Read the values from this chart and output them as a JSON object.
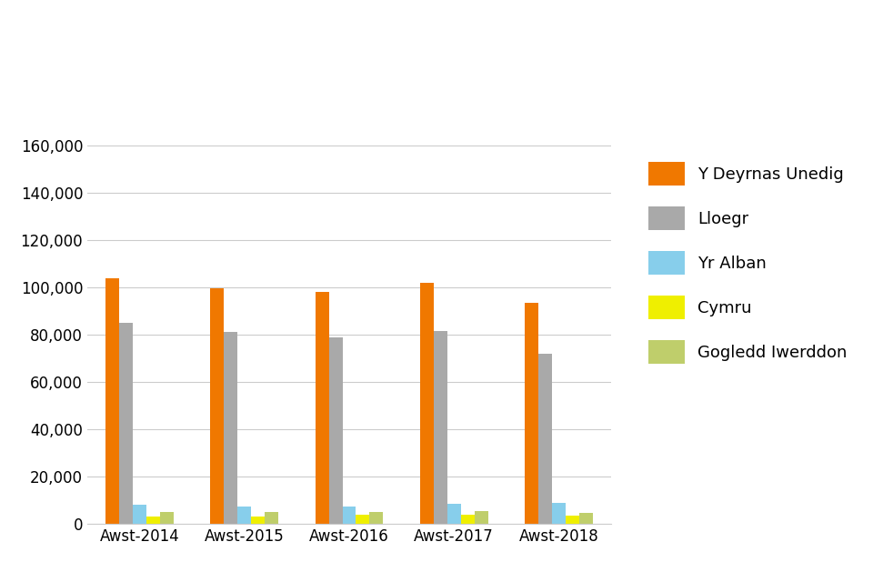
{
  "categories": [
    "Awst-2014",
    "Awst-2015",
    "Awst-2016",
    "Awst-2017",
    "Awst-2018"
  ],
  "series": {
    "Y Deyrnas Unedig": [
      104000,
      99500,
      98000,
      102000,
      93500
    ],
    "Lloegr": [
      85000,
      81000,
      79000,
      81500,
      72000
    ],
    "Yr Alban": [
      8000,
      7500,
      7500,
      8500,
      9000
    ],
    "Cymru": [
      3000,
      3000,
      4000,
      4000,
      3500
    ],
    "Gogledd Iwerddon": [
      5000,
      5000,
      5000,
      5500,
      4500
    ]
  },
  "colors": {
    "Y Deyrnas Unedig": "#F07800",
    "Lloegr": "#A9A9A9",
    "Yr Alban": "#87CEEB",
    "Cymru": "#EFEF00",
    "Gogledd Iwerddon": "#BFCE6B"
  },
  "ylim": [
    0,
    160000
  ],
  "ytick_step": 20000,
  "bar_width": 0.13,
  "background_color": "#FFFFFF",
  "legend_fontsize": 13,
  "tick_fontsize": 12,
  "grid_color": "#CCCCCC"
}
